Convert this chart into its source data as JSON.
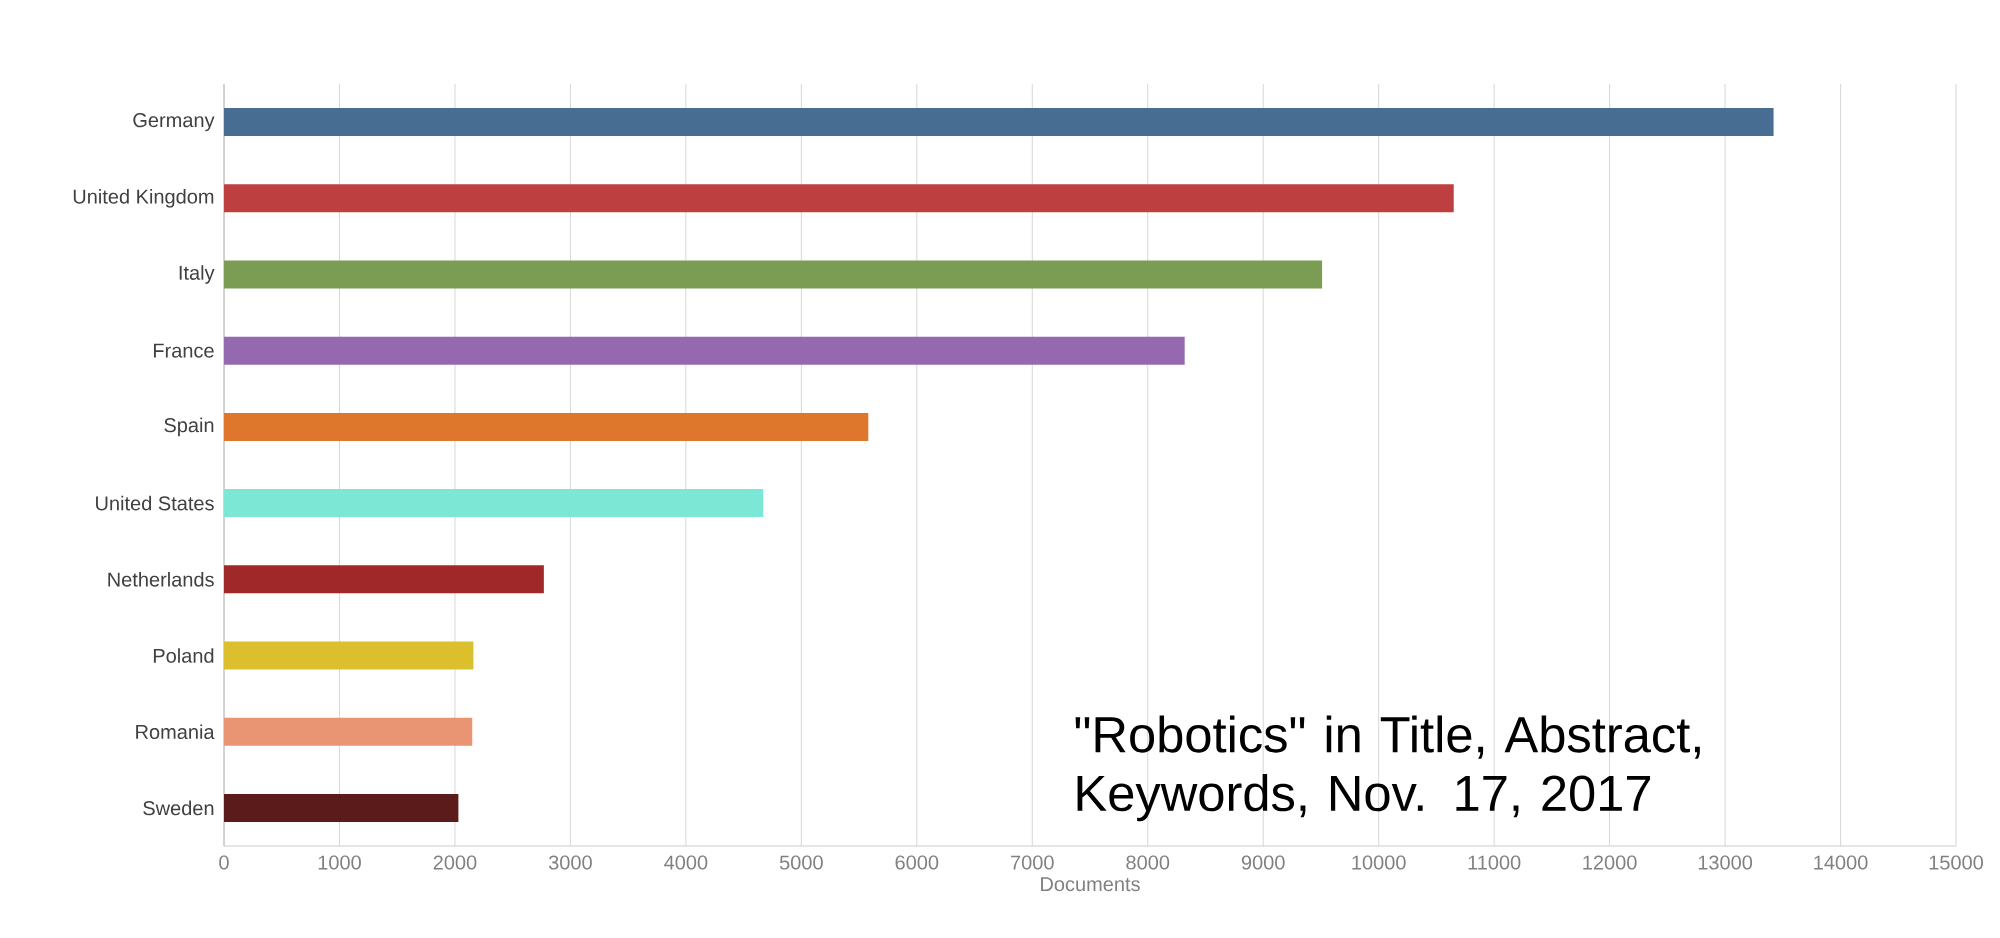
{
  "chart_data": {
    "type": "bar",
    "orientation": "horizontal",
    "xlabel": "Documents",
    "categories": [
      "Germany",
      "United Kingdom",
      "Italy",
      "France",
      "Spain",
      "United States",
      "Netherlands",
      "Poland",
      "Romania",
      "Sweden"
    ],
    "values": [
      13420,
      10650,
      9510,
      8320,
      5580,
      4670,
      2770,
      2160,
      2150,
      2030
    ],
    "colors": [
      "#486d92",
      "#be3f3f",
      "#7b9c53",
      "#9469b0",
      "#de772c",
      "#7de7d5",
      "#a02828",
      "#dbbf2c",
      "#e99472",
      "#5c1b1b"
    ],
    "xlim": [
      0,
      15000
    ],
    "xticks": [
      0,
      1000,
      2000,
      3000,
      4000,
      5000,
      6000,
      7000,
      8000,
      9000,
      10000,
      11000,
      12000,
      13000,
      14000,
      15000
    ],
    "grid": "x",
    "annotations": [
      "\"Robotics\" in Title, Abstract, Keywords, Nov. 17, 2017"
    ]
  }
}
